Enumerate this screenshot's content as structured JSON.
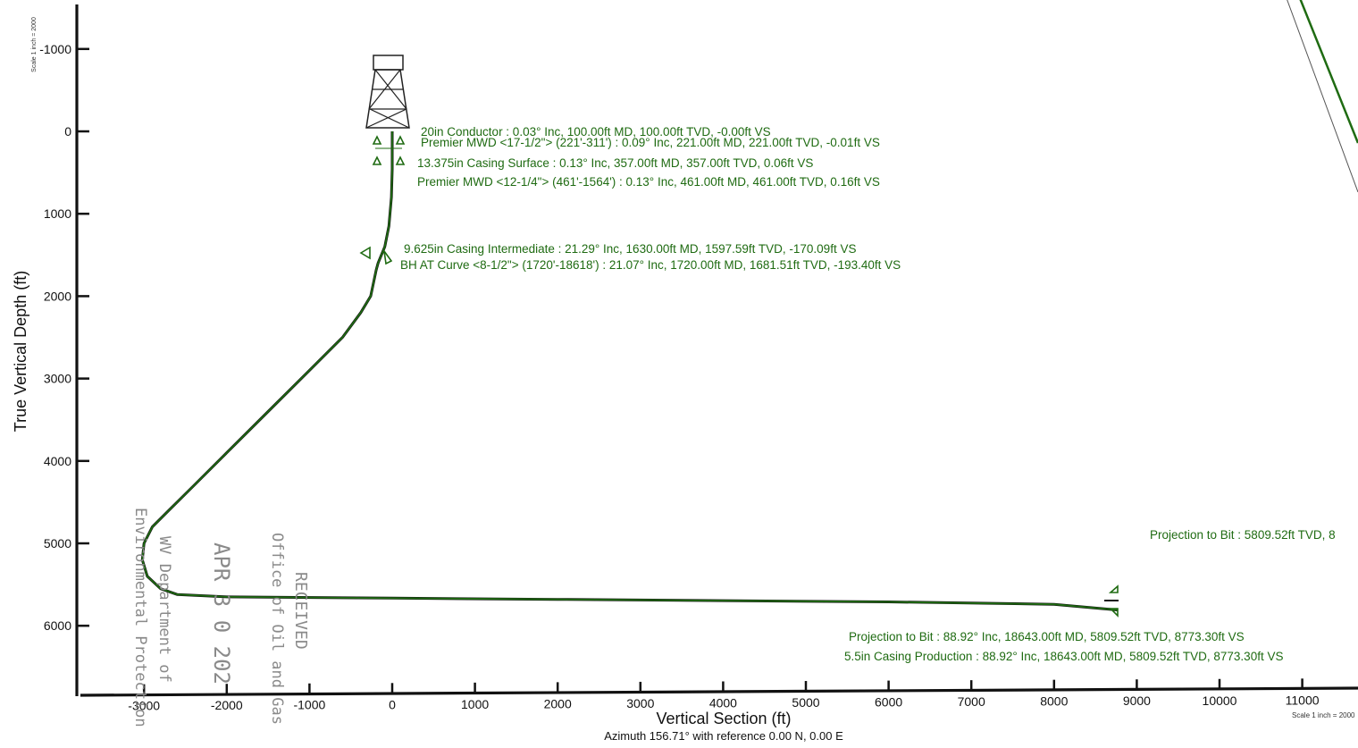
{
  "chart_data": {
    "type": "line",
    "title": "",
    "xlabel": "Vertical Section (ft)",
    "ylabel": "True Vertical Depth (ft)",
    "subtitle": "Azimuth 156.71° with reference 0.00 N, 0.00 E",
    "scale_note_left": "Scale 1 inch = 2000",
    "scale_note_right": "Scale 1 inch = 2000",
    "xlim": [
      -3800,
      11700
    ],
    "ylim": [
      6900,
      -1500
    ],
    "y_inverted": true,
    "grid": false,
    "x_ticks": [
      -3000,
      -2000,
      -1000,
      0,
      1000,
      2000,
      3000,
      4000,
      5000,
      6000,
      7000,
      8000,
      9000,
      10000,
      11000
    ],
    "x_tick_labels": [
      "-3000",
      "-2000",
      "-1000",
      "0",
      "1000",
      "2000",
      "3000",
      "4000",
      "5000",
      "6000",
      "7000",
      "8000",
      "9000",
      "10000",
      "11000"
    ],
    "y_ticks": [
      -1000,
      0,
      1000,
      2000,
      3000,
      4000,
      5000,
      6000
    ],
    "y_tick_labels": [
      "-1000",
      "0",
      "1000",
      "2000",
      "3000",
      "4000",
      "5000",
      "6000"
    ],
    "series": [
      {
        "color": "#1f6b12",
        "x": [
          0,
          0,
          -0.01,
          0.06,
          0.16,
          -10,
          -40,
          -90,
          -170.09,
          -193.4,
          -260,
          -380,
          -600,
          -1000,
          -1500,
          -2000,
          -2400,
          -2700,
          -2900,
          -3000,
          -3020,
          -2960,
          -2800,
          -2600,
          -2000,
          0,
          2000,
          4000,
          6000,
          8000,
          8773.3
        ],
        "y": [
          0,
          100,
          221,
          357,
          461,
          800,
          1150,
          1400,
          1597.59,
          1681.51,
          2000,
          2200,
          2500,
          2900,
          3400,
          3900,
          4300,
          4600,
          4800,
          5000,
          5200,
          5400,
          5550,
          5620,
          5650,
          5665,
          5680,
          5695,
          5710,
          5740,
          5809.52
        ]
      }
    ],
    "annotations": [
      {
        "text": "20in Conductor : 0.03° Inc, 100.00ft MD, 100.00ft TVD, -0.00ft VS"
      },
      {
        "text": "Premier MWD <17-1/2\"> (221'-311') : 0.09° Inc, 221.00ft MD, 221.00ft TVD, -0.01ft VS"
      },
      {
        "text": "13.375in Casing Surface : 0.13° Inc, 357.00ft MD, 357.00ft TVD, 0.06ft VS"
      },
      {
        "text": "Premier MWD <12-1/4\"> (461'-1564') : 0.13° Inc, 461.00ft MD, 461.00ft TVD, 0.16ft VS"
      },
      {
        "text": "9.625in Casing Intermediate : 21.29° Inc, 1630.00ft MD, 1597.59ft TVD, -170.09ft VS"
      },
      {
        "text": "BH AT Curve <8-1/2\"> (1720'-18618') : 21.07° Inc, 1720.00ft MD, 1681.51ft TVD, -193.40ft VS"
      },
      {
        "text": "Projection to Bit : 88.92° Inc, 18643.00ft MD, 5809.52ft TVD, 8773.30ft VS"
      },
      {
        "text": "5.5in Casing Production : 88.92° Inc, 18643.00ft MD, 5809.52ft TVD, 8773.30ft VS"
      },
      {
        "text": "Projection to Bit : 5809.52ft TVD, 8"
      }
    ],
    "stamp_lines": [
      "RECEIVED",
      "Office of Oil and Gas",
      "APR 3 0 202",
      "WV Department of",
      "Environmental Protection"
    ]
  }
}
